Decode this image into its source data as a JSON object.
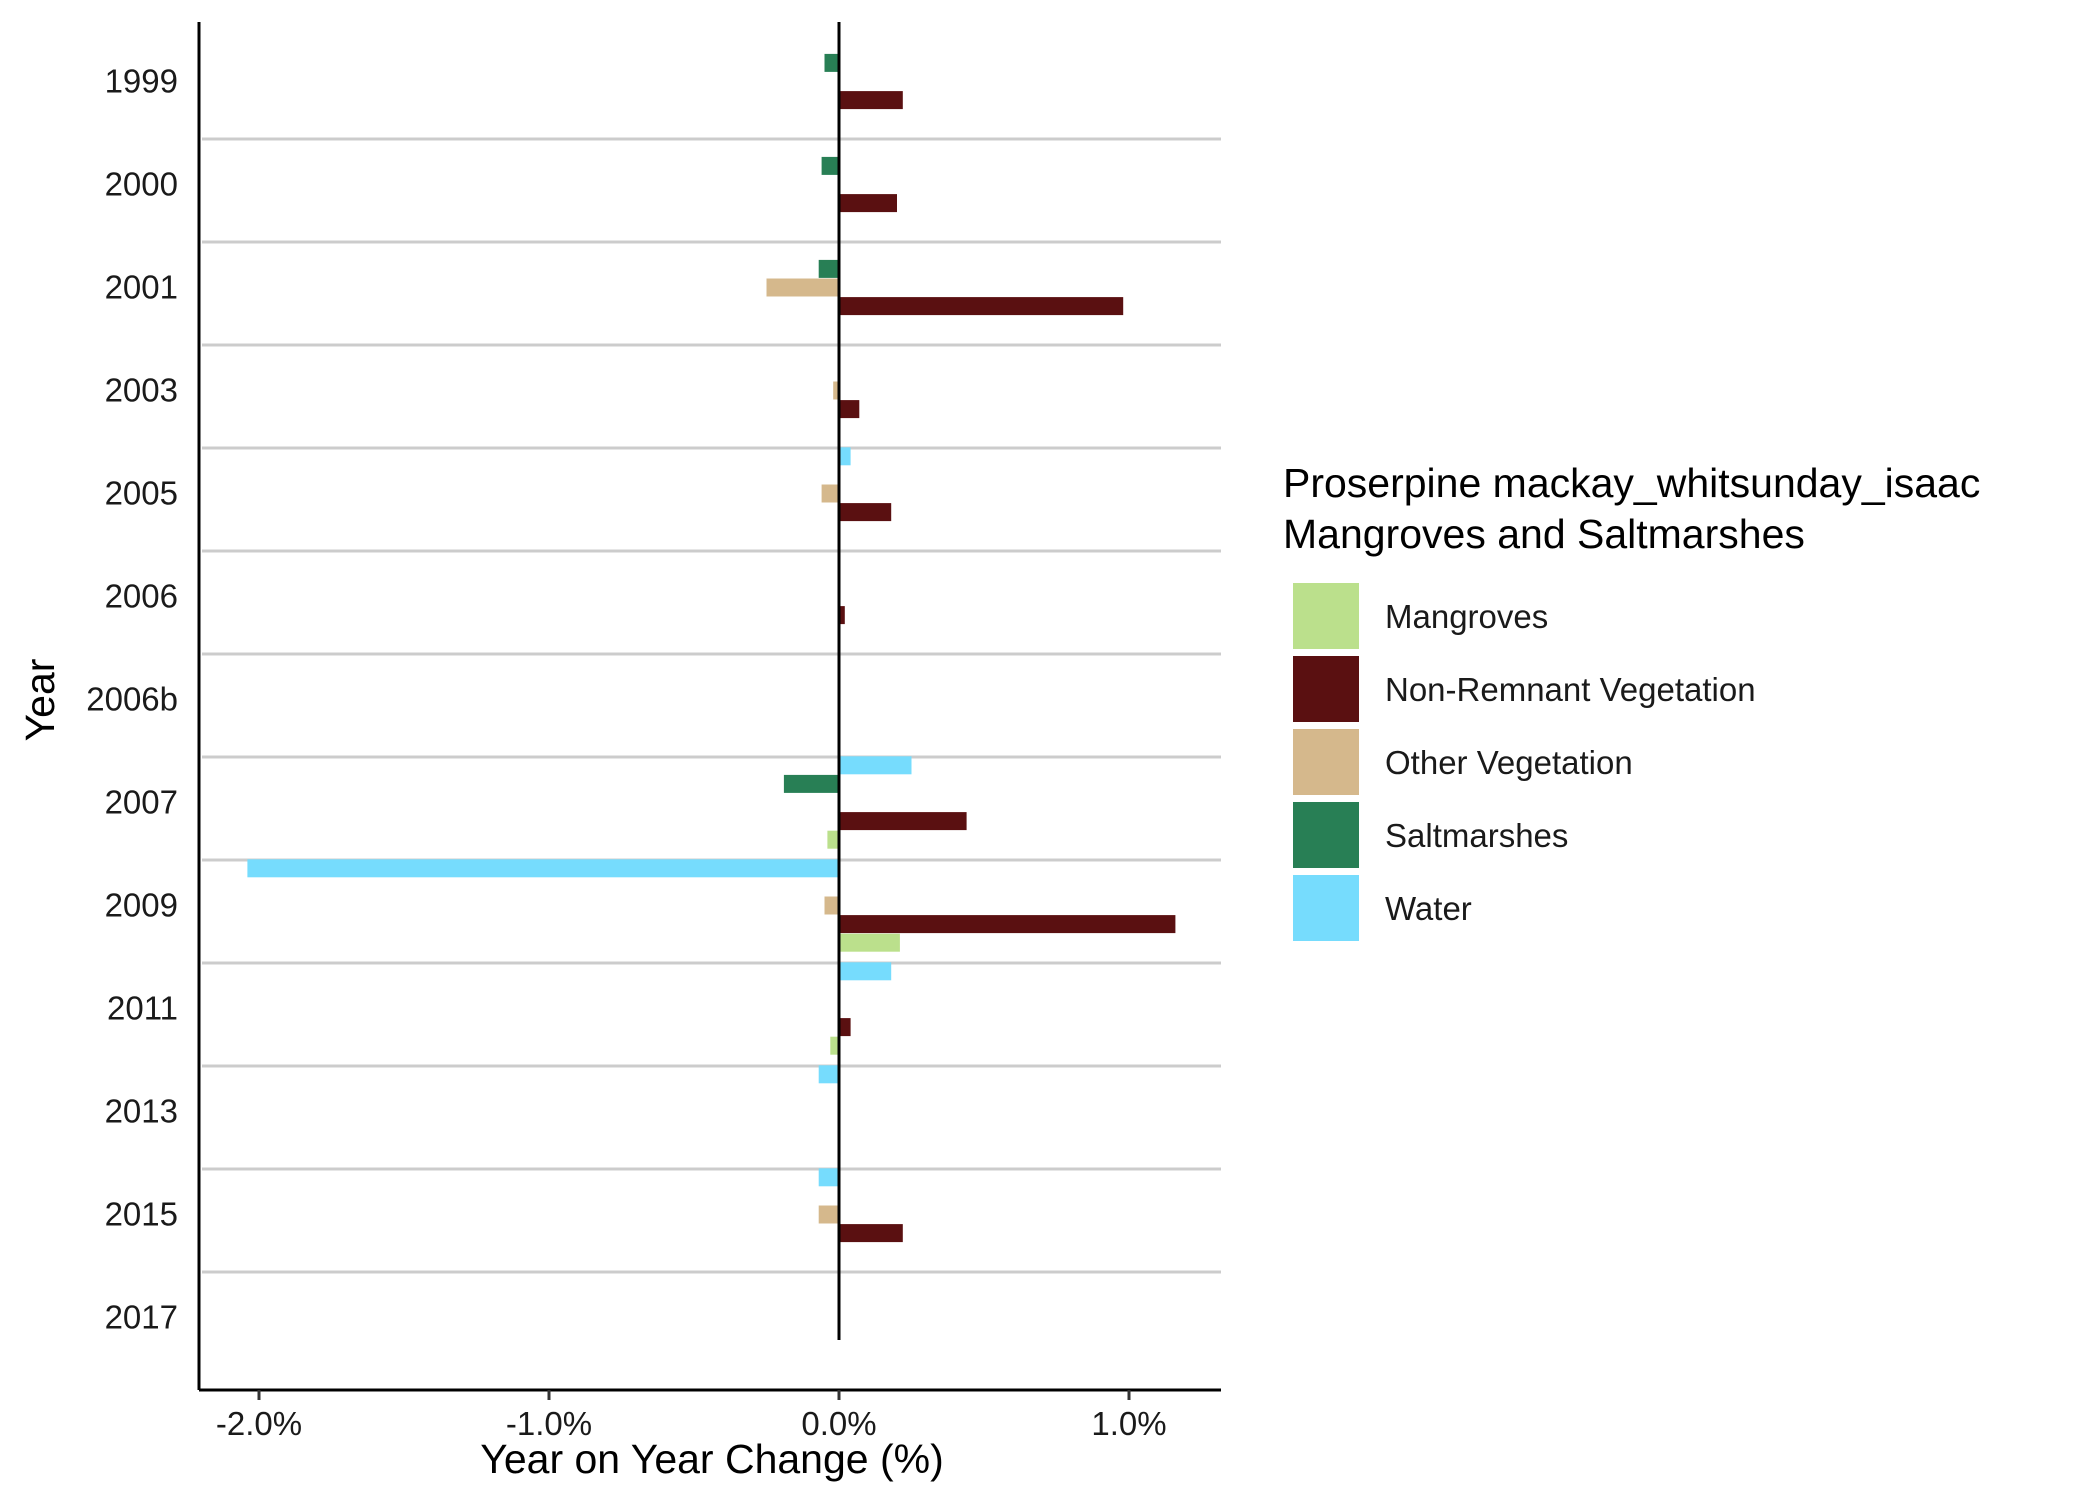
{
  "chart_data": {
    "type": "bar",
    "orientation": "horizontal",
    "xlabel": "Year on Year Change (%)",
    "ylabel": "Year",
    "xlim": [
      -2.2,
      1.33
    ],
    "xticks": [
      {
        "value": -2.0,
        "label": "-2.0%"
      },
      {
        "value": -1.0,
        "label": "-1.0%"
      },
      {
        "value": 0.0,
        "label": "0.0%"
      },
      {
        "value": 1.0,
        "label": "1.0%"
      }
    ],
    "categories": [
      "1999",
      "2000",
      "2001",
      "2003",
      "2005",
      "2006",
      "2006b",
      "2007",
      "2009",
      "2011",
      "2013",
      "2015",
      "2017"
    ],
    "legend": {
      "title_lines": [
        "Proserpine mackay_whitsunday_isaac",
        "Mangroves and Saltmarshes"
      ],
      "position": "right"
    },
    "grid": "horizontal separators between years",
    "series": [
      {
        "name": "Water",
        "color": "#76dcfd",
        "values": [
          0,
          0,
          0,
          0,
          0.04,
          0,
          0,
          0.25,
          -2.04,
          0.18,
          -0.07,
          -0.07,
          0
        ]
      },
      {
        "name": "Saltmarshes",
        "color": "#287f55",
        "values": [
          -0.05,
          -0.06,
          -0.07,
          0,
          0,
          0,
          0,
          -0.19,
          0,
          0,
          0,
          0,
          0
        ]
      },
      {
        "name": "Other Vegetation",
        "color": "#d5b88c",
        "values": [
          0,
          0,
          -0.25,
          -0.02,
          -0.06,
          0,
          0,
          0,
          -0.05,
          0,
          0,
          -0.07,
          0
        ]
      },
      {
        "name": "Non-Remnant Vegetation",
        "color": "#5a1011",
        "values": [
          0.22,
          0.2,
          0.98,
          0.07,
          0.18,
          0.02,
          0,
          0.44,
          1.16,
          0.04,
          0,
          0.22,
          0
        ]
      },
      {
        "name": "Mangroves",
        "color": "#bbe08c",
        "values": [
          0,
          0,
          0,
          0,
          0,
          0,
          0,
          -0.04,
          0.21,
          -0.03,
          0,
          0,
          0
        ]
      }
    ],
    "legend_order": [
      "Mangroves",
      "Non-Remnant Vegetation",
      "Other Vegetation",
      "Saltmarshes",
      "Water"
    ]
  }
}
